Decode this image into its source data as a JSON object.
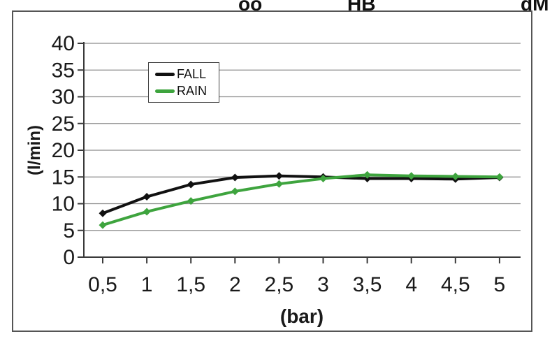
{
  "top_labels": [
    "öö",
    "HB",
    "dM"
  ],
  "colors": {
    "grid": "#8c8c8c",
    "axis": "#3a3a3a",
    "frame_border": "#555555",
    "fall_series": "#111111",
    "rain_series": "#3ea43e"
  },
  "chart_data": {
    "type": "line",
    "title": "",
    "xlabel": "(bar)",
    "ylabel": "(l/min)",
    "categories": [
      "0,5",
      "1",
      "1,5",
      "2",
      "2,5",
      "3",
      "3,5",
      "4",
      "4,5",
      "5"
    ],
    "categories_numeric": [
      0.5,
      1,
      1.5,
      2,
      2.5,
      3,
      3.5,
      4,
      4.5,
      5
    ],
    "ylim": [
      0,
      40
    ],
    "yticks": [
      0,
      5,
      10,
      15,
      20,
      25,
      30,
      35,
      40
    ],
    "grid": true,
    "legend_position": "inside-top-left",
    "series": [
      {
        "name": "FALL",
        "color": "#111111",
        "values": [
          8.2,
          11.3,
          13.6,
          14.9,
          15.2,
          15.0,
          14.7,
          14.7,
          14.6,
          14.9
        ]
      },
      {
        "name": "RAIN",
        "color": "#3ea43e",
        "values": [
          6.0,
          8.5,
          10.5,
          12.3,
          13.7,
          14.7,
          15.4,
          15.2,
          15.1,
          15.0
        ]
      }
    ]
  }
}
